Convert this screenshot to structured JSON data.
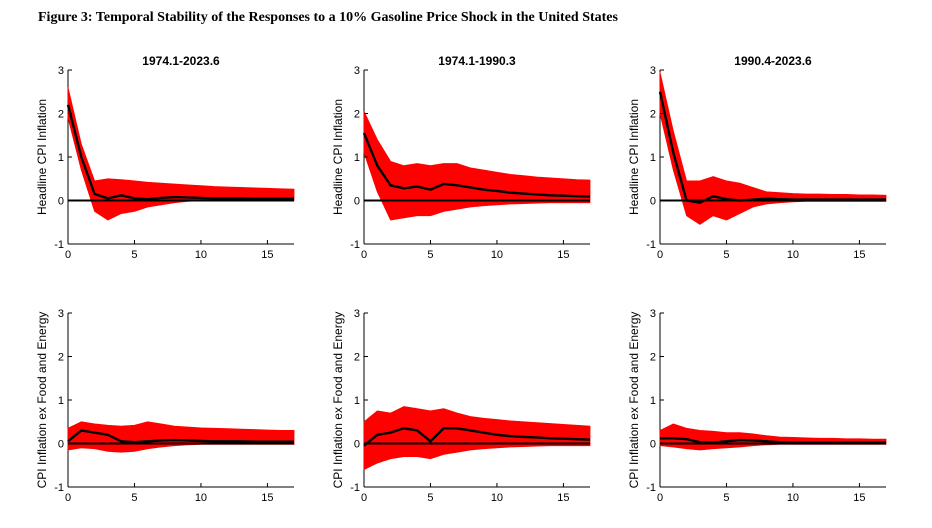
{
  "figure": {
    "title": "Figure 3: Temporal Stability of the Responses to a 10% Gasoline Price Shock in the United States"
  },
  "colors": {
    "band": "#ff0000",
    "median": "#000000",
    "zero": "#000000"
  },
  "chart_data": [
    {
      "type": "line",
      "title": "1974.1-2023.6",
      "ylabel": "Headline CPI Inflation",
      "xlim": [
        0,
        17
      ],
      "ylim": [
        -1,
        3
      ],
      "xticks": [
        "0",
        "5",
        "10",
        "15"
      ],
      "yticks": [
        "-1",
        "0",
        "1",
        "2",
        "3"
      ],
      "x": [
        0,
        1,
        2,
        3,
        4,
        5,
        6,
        7,
        8,
        9,
        10,
        11,
        12,
        13,
        14,
        15,
        16,
        17
      ],
      "series": [
        {
          "role": "upper",
          "values": [
            2.6,
            1.3,
            0.45,
            0.5,
            0.48,
            0.45,
            0.42,
            0.4,
            0.38,
            0.36,
            0.34,
            0.32,
            0.31,
            0.3,
            0.29,
            0.28,
            0.27,
            0.26
          ]
        },
        {
          "role": "median",
          "values": [
            2.2,
            1.0,
            0.15,
            0.05,
            0.12,
            0.05,
            0.03,
            0.06,
            0.08,
            0.07,
            0.06,
            0.05,
            0.05,
            0.05,
            0.04,
            0.04,
            0.04,
            0.04
          ]
        },
        {
          "role": "lower",
          "values": [
            1.9,
            0.7,
            -0.25,
            -0.45,
            -0.3,
            -0.25,
            -0.15,
            -0.1,
            -0.05,
            -0.02,
            0.0,
            0.0,
            0.0,
            0.0,
            0.0,
            0.0,
            0.0,
            0.0
          ]
        }
      ]
    },
    {
      "type": "line",
      "title": "1974.1-1990.3",
      "ylabel": "Headline CPI Inflation",
      "xlim": [
        0,
        17
      ],
      "ylim": [
        -1,
        3
      ],
      "xticks": [
        "0",
        "5",
        "10",
        "15"
      ],
      "yticks": [
        "-1",
        "0",
        "1",
        "2",
        "3"
      ],
      "x": [
        0,
        1,
        2,
        3,
        4,
        5,
        6,
        7,
        8,
        9,
        10,
        11,
        12,
        13,
        14,
        15,
        16,
        17
      ],
      "series": [
        {
          "role": "upper",
          "values": [
            2.05,
            1.4,
            0.9,
            0.8,
            0.85,
            0.8,
            0.85,
            0.85,
            0.75,
            0.7,
            0.65,
            0.6,
            0.57,
            0.54,
            0.52,
            0.5,
            0.48,
            0.47
          ]
        },
        {
          "role": "median",
          "values": [
            1.55,
            0.8,
            0.35,
            0.28,
            0.32,
            0.25,
            0.38,
            0.35,
            0.3,
            0.25,
            0.22,
            0.18,
            0.16,
            0.14,
            0.12,
            0.11,
            0.1,
            0.09
          ]
        },
        {
          "role": "lower",
          "values": [
            1.1,
            0.2,
            -0.45,
            -0.4,
            -0.35,
            -0.35,
            -0.25,
            -0.2,
            -0.15,
            -0.12,
            -0.1,
            -0.08,
            -0.07,
            -0.06,
            -0.05,
            -0.05,
            -0.05,
            -0.05
          ]
        }
      ]
    },
    {
      "type": "line",
      "title": "1990.4-2023.6",
      "ylabel": "Headline CPI Inflation",
      "xlim": [
        0,
        17
      ],
      "ylim": [
        -1,
        3
      ],
      "xticks": [
        "0",
        "5",
        "10",
        "15"
      ],
      "yticks": [
        "-1",
        "0",
        "1",
        "2",
        "3"
      ],
      "x": [
        0,
        1,
        2,
        3,
        4,
        5,
        6,
        7,
        8,
        9,
        10,
        11,
        12,
        13,
        14,
        15,
        16,
        17
      ],
      "series": [
        {
          "role": "upper",
          "values": [
            2.95,
            1.6,
            0.45,
            0.45,
            0.55,
            0.45,
            0.4,
            0.3,
            0.2,
            0.18,
            0.16,
            0.15,
            0.15,
            0.14,
            0.14,
            0.13,
            0.13,
            0.12
          ]
        },
        {
          "role": "median",
          "values": [
            2.5,
            1.1,
            0.0,
            -0.05,
            0.1,
            0.03,
            0.0,
            0.02,
            0.04,
            0.03,
            0.02,
            0.02,
            0.02,
            0.02,
            0.02,
            0.02,
            0.02,
            0.02
          ]
        },
        {
          "role": "lower",
          "values": [
            2.0,
            0.7,
            -0.35,
            -0.55,
            -0.35,
            -0.45,
            -0.3,
            -0.15,
            -0.08,
            -0.05,
            -0.03,
            -0.02,
            -0.02,
            -0.02,
            -0.02,
            -0.02,
            -0.02,
            -0.02
          ]
        }
      ]
    },
    {
      "type": "line",
      "title": "",
      "ylabel": "CPI Inflation ex Food and Energy",
      "xlim": [
        0,
        17
      ],
      "ylim": [
        -1,
        3
      ],
      "xticks": [
        "0",
        "5",
        "10",
        "15"
      ],
      "yticks": [
        "-1",
        "0",
        "1",
        "2",
        "3"
      ],
      "x": [
        0,
        1,
        2,
        3,
        4,
        5,
        6,
        7,
        8,
        9,
        10,
        11,
        12,
        13,
        14,
        15,
        16,
        17
      ],
      "series": [
        {
          "role": "upper",
          "values": [
            0.35,
            0.5,
            0.45,
            0.42,
            0.4,
            0.42,
            0.5,
            0.45,
            0.4,
            0.38,
            0.36,
            0.35,
            0.34,
            0.33,
            0.32,
            0.31,
            0.3,
            0.3
          ]
        },
        {
          "role": "median",
          "values": [
            0.05,
            0.3,
            0.25,
            0.2,
            0.05,
            0.03,
            0.05,
            0.07,
            0.08,
            0.07,
            0.06,
            0.05,
            0.05,
            0.05,
            0.04,
            0.04,
            0.04,
            0.04
          ]
        },
        {
          "role": "lower",
          "values": [
            -0.15,
            -0.1,
            -0.12,
            -0.18,
            -0.2,
            -0.18,
            -0.12,
            -0.08,
            -0.05,
            -0.03,
            -0.02,
            -0.02,
            -0.02,
            -0.02,
            -0.02,
            -0.02,
            -0.02,
            -0.02
          ]
        }
      ]
    },
    {
      "type": "line",
      "title": "",
      "ylabel": "CPI Inflation ex Food and Energy",
      "xlim": [
        0,
        17
      ],
      "ylim": [
        -1,
        3
      ],
      "xticks": [
        "0",
        "5",
        "10",
        "15"
      ],
      "yticks": [
        "-1",
        "0",
        "1",
        "2",
        "3"
      ],
      "x": [
        0,
        1,
        2,
        3,
        4,
        5,
        6,
        7,
        8,
        9,
        10,
        11,
        12,
        13,
        14,
        15,
        16,
        17
      ],
      "series": [
        {
          "role": "upper",
          "values": [
            0.5,
            0.75,
            0.7,
            0.85,
            0.8,
            0.75,
            0.8,
            0.7,
            0.62,
            0.58,
            0.55,
            0.52,
            0.5,
            0.48,
            0.46,
            0.44,
            0.42,
            0.4
          ]
        },
        {
          "role": "median",
          "values": [
            -0.05,
            0.2,
            0.25,
            0.35,
            0.3,
            0.05,
            0.35,
            0.35,
            0.3,
            0.25,
            0.2,
            0.17,
            0.15,
            0.14,
            0.12,
            0.11,
            0.1,
            0.09
          ]
        },
        {
          "role": "lower",
          "values": [
            -0.6,
            -0.45,
            -0.35,
            -0.3,
            -0.3,
            -0.35,
            -0.25,
            -0.2,
            -0.15,
            -0.12,
            -0.1,
            -0.08,
            -0.07,
            -0.06,
            -0.05,
            -0.05,
            -0.05,
            -0.05
          ]
        }
      ]
    },
    {
      "type": "line",
      "title": "",
      "ylabel": "CPI Inflation ex Food and Energy",
      "xlim": [
        0,
        17
      ],
      "ylim": [
        -1,
        3
      ],
      "xticks": [
        "0",
        "5",
        "10",
        "15"
      ],
      "yticks": [
        "-1",
        "0",
        "1",
        "2",
        "3"
      ],
      "x": [
        0,
        1,
        2,
        3,
        4,
        5,
        6,
        7,
        8,
        9,
        10,
        11,
        12,
        13,
        14,
        15,
        16,
        17
      ],
      "series": [
        {
          "role": "upper",
          "values": [
            0.3,
            0.45,
            0.35,
            0.3,
            0.28,
            0.25,
            0.25,
            0.22,
            0.18,
            0.15,
            0.14,
            0.13,
            0.12,
            0.12,
            0.11,
            0.11,
            0.1,
            0.1
          ]
        },
        {
          "role": "median",
          "values": [
            0.12,
            0.12,
            0.1,
            0.03,
            0.02,
            0.05,
            0.08,
            0.07,
            0.05,
            0.03,
            0.02,
            0.02,
            0.02,
            0.02,
            0.02,
            0.02,
            0.02,
            0.02
          ]
        },
        {
          "role": "lower",
          "values": [
            -0.05,
            -0.08,
            -0.12,
            -0.15,
            -0.12,
            -0.1,
            -0.08,
            -0.05,
            -0.03,
            -0.02,
            -0.02,
            -0.02,
            -0.02,
            -0.02,
            -0.02,
            -0.02,
            -0.02,
            -0.02
          ]
        }
      ]
    }
  ]
}
